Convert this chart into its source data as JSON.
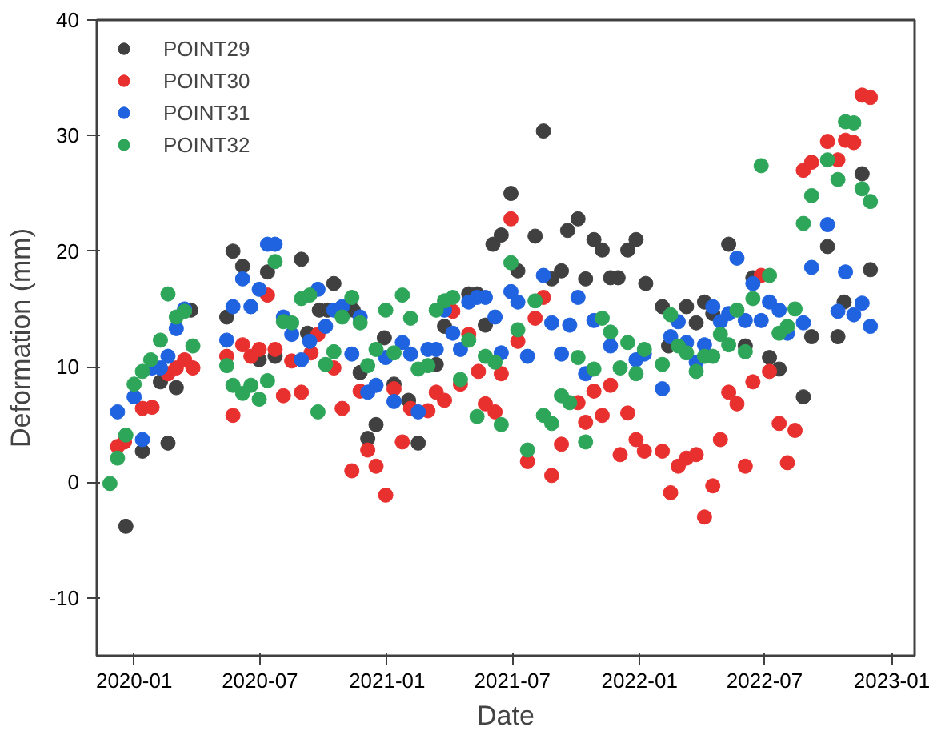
{
  "chart_data": {
    "type": "scatter",
    "xlabel": "Date",
    "ylabel": "Deformation (mm)",
    "xlim": [
      "2019-11-08",
      "2023-02-03"
    ],
    "xticks": [
      "2020-01",
      "2020-07",
      "2021-01",
      "2021-07",
      "2022-01",
      "2022-07",
      "2023-01"
    ],
    "ylim": [
      -15,
      40
    ],
    "yticks": [
      -10,
      0,
      10,
      20,
      30,
      40
    ],
    "grid": false,
    "legend": "top left",
    "marker": "circle",
    "series": [
      {
        "name": "POINT29",
        "color": "#404040",
        "x": [
          "2019-12-20",
          "2020-01-13",
          "2020-02-08",
          "2020-02-19",
          "2020-03-02",
          "2020-03-23",
          "2020-05-14",
          "2020-05-23",
          "2020-06-06",
          "2020-06-30",
          "2020-07-12",
          "2020-07-23",
          "2020-08-30",
          "2020-09-08",
          "2020-09-25",
          "2020-10-07",
          "2020-10-16",
          "2020-11-13",
          "2020-11-23",
          "2020-12-04",
          "2020-12-16",
          "2020-12-28",
          "2021-01-11",
          "2021-02-01",
          "2021-02-15",
          "2021-03-13",
          "2021-03-25",
          "2021-04-29",
          "2021-05-11",
          "2021-05-23",
          "2021-06-03",
          "2021-06-15",
          "2021-06-29",
          "2021-07-09",
          "2021-08-03",
          "2021-08-15",
          "2021-08-27",
          "2021-09-10",
          "2021-09-19",
          "2021-10-04",
          "2021-10-15",
          "2021-10-27",
          "2021-11-08",
          "2021-11-20",
          "2021-12-01",
          "2021-12-15",
          "2021-12-27",
          "2022-01-10",
          "2022-02-03",
          "2022-02-12",
          "2022-03-10",
          "2022-03-24",
          "2022-04-05",
          "2022-04-17",
          "2022-05-10",
          "2022-06-03",
          "2022-06-14",
          "2022-07-08",
          "2022-07-22",
          "2022-08-26",
          "2022-09-07",
          "2022-09-30",
          "2022-10-15",
          "2022-10-24",
          "2022-11-19",
          "2022-12-01"
        ],
        "values": [
          -3.8,
          2.7,
          8.7,
          3.4,
          8.2,
          14.9,
          14.3,
          20.0,
          18.7,
          10.6,
          18.2,
          10.9,
          19.3,
          12.9,
          14.9,
          14.9,
          17.2,
          14.9,
          9.5,
          3.8,
          5.0,
          12.5,
          8.5,
          7.1,
          3.4,
          10.2,
          13.5,
          16.3,
          16.3,
          13.6,
          20.6,
          21.4,
          25.0,
          18.3,
          21.3,
          30.4,
          17.6,
          18.3,
          21.8,
          22.8,
          17.6,
          21.0,
          20.1,
          17.7,
          17.7,
          20.1,
          21.0,
          17.2,
          15.2,
          11.8,
          15.2,
          13.8,
          15.6,
          14.6,
          20.6,
          11.8,
          17.7,
          10.8,
          9.8,
          7.4,
          12.6,
          20.4,
          12.6,
          15.6,
          26.7,
          18.4
        ]
      },
      {
        "name": "POINT30",
        "color": "#e8302f",
        "x": [
          "2019-12-08",
          "2019-12-18",
          "2020-01-13",
          "2020-01-27",
          "2020-02-19",
          "2020-03-02",
          "2020-03-14",
          "2020-03-26",
          "2020-05-14",
          "2020-05-23",
          "2020-06-06",
          "2020-06-18",
          "2020-06-30",
          "2020-07-12",
          "2020-07-23",
          "2020-08-04",
          "2020-08-16",
          "2020-08-30",
          "2020-09-13",
          "2020-09-23",
          "2020-10-16",
          "2020-10-28",
          "2020-11-11",
          "2020-11-23",
          "2020-12-04",
          "2020-12-16",
          "2020-12-30",
          "2021-01-11",
          "2021-01-23",
          "2021-02-04",
          "2021-03-01",
          "2021-03-13",
          "2021-03-25",
          "2021-04-06",
          "2021-04-17",
          "2021-04-29",
          "2021-05-13",
          "2021-05-23",
          "2021-06-06",
          "2021-06-15",
          "2021-06-29",
          "2021-07-09",
          "2021-07-23",
          "2021-08-03",
          "2021-08-15",
          "2021-08-27",
          "2021-09-10",
          "2021-10-04",
          "2021-10-15",
          "2021-10-27",
          "2021-11-08",
          "2021-11-20",
          "2021-12-04",
          "2021-12-15",
          "2021-12-27",
          "2022-01-08",
          "2022-02-03",
          "2022-02-15",
          "2022-02-26",
          "2022-03-10",
          "2022-03-24",
          "2022-04-05",
          "2022-04-17",
          "2022-04-28",
          "2022-05-10",
          "2022-05-22",
          "2022-06-03",
          "2022-06-14",
          "2022-06-26",
          "2022-07-08",
          "2022-07-22",
          "2022-08-03",
          "2022-08-14",
          "2022-08-26",
          "2022-09-07",
          "2022-09-30",
          "2022-10-15",
          "2022-10-26",
          "2022-11-07",
          "2022-11-19",
          "2022-12-01"
        ],
        "values": [
          3.1,
          3.5,
          6.4,
          6.5,
          9.4,
          9.9,
          10.6,
          9.9,
          10.9,
          5.8,
          11.9,
          10.9,
          11.5,
          16.2,
          11.5,
          7.5,
          10.5,
          7.8,
          11.2,
          12.8,
          9.9,
          6.4,
          1.0,
          7.9,
          2.8,
          1.4,
          -1.1,
          8.1,
          3.5,
          6.4,
          6.2,
          7.8,
          7.1,
          14.8,
          8.5,
          12.8,
          9.6,
          6.8,
          6.1,
          9.4,
          22.8,
          12.2,
          1.8,
          14.2,
          16.0,
          0.6,
          3.3,
          6.9,
          5.2,
          7.9,
          5.8,
          8.4,
          2.4,
          6.0,
          3.7,
          2.7,
          2.7,
          -0.9,
          1.4,
          2.1,
          2.4,
          -3.0,
          -0.3,
          3.7,
          7.8,
          6.8,
          1.4,
          8.7,
          17.9,
          9.6,
          5.1,
          1.7,
          4.5,
          27.0,
          27.7,
          29.5,
          27.9,
          29.6,
          29.4,
          33.5,
          33.3
        ]
      },
      {
        "name": "POINT31",
        "color": "#1f63e0",
        "x": [
          "2019-12-08",
          "2020-01-01",
          "2020-01-13",
          "2020-01-27",
          "2020-02-08",
          "2020-02-19",
          "2020-03-02",
          "2020-03-14",
          "2020-05-14",
          "2020-05-23",
          "2020-06-06",
          "2020-06-18",
          "2020-06-30",
          "2020-07-12",
          "2020-07-23",
          "2020-08-04",
          "2020-08-16",
          "2020-08-30",
          "2020-09-11",
          "2020-09-23",
          "2020-10-04",
          "2020-10-16",
          "2020-10-28",
          "2020-11-11",
          "2020-11-23",
          "2020-12-04",
          "2020-12-16",
          "2020-12-30",
          "2021-01-11",
          "2021-01-23",
          "2021-02-04",
          "2021-02-15",
          "2021-03-01",
          "2021-03-13",
          "2021-03-25",
          "2021-04-06",
          "2021-04-17",
          "2021-04-29",
          "2021-05-11",
          "2021-05-23",
          "2021-06-06",
          "2021-06-15",
          "2021-06-29",
          "2021-07-09",
          "2021-07-23",
          "2021-08-15",
          "2021-08-27",
          "2021-09-10",
          "2021-09-22",
          "2021-10-04",
          "2021-10-15",
          "2021-10-27",
          "2021-11-20",
          "2021-12-27",
          "2022-01-08",
          "2022-02-03",
          "2022-02-15",
          "2022-02-26",
          "2022-03-10",
          "2022-03-24",
          "2022-04-05",
          "2022-04-17",
          "2022-04-28",
          "2022-05-10",
          "2022-05-22",
          "2022-06-03",
          "2022-06-14",
          "2022-06-26",
          "2022-07-08",
          "2022-07-22",
          "2022-08-03",
          "2022-08-26",
          "2022-09-07",
          "2022-09-30",
          "2022-10-15",
          "2022-10-26",
          "2022-11-07",
          "2022-11-19",
          "2022-12-01"
        ],
        "values": [
          6.1,
          7.4,
          3.7,
          9.9,
          9.9,
          10.9,
          13.3,
          15.0,
          12.3,
          15.2,
          17.6,
          15.2,
          16.7,
          20.6,
          20.6,
          14.3,
          12.8,
          10.6,
          12.2,
          16.7,
          13.5,
          14.9,
          15.2,
          11.1,
          14.3,
          7.8,
          8.4,
          10.8,
          7.0,
          12.1,
          11.1,
          6.1,
          11.5,
          11.5,
          14.9,
          12.9,
          11.5,
          15.6,
          16.0,
          16.0,
          14.3,
          11.2,
          16.5,
          15.6,
          10.9,
          17.9,
          13.8,
          11.1,
          13.6,
          16.0,
          9.4,
          14.0,
          11.8,
          10.6,
          11.1,
          8.1,
          12.6,
          13.9,
          12.1,
          10.4,
          11.9,
          15.2,
          13.9,
          14.6,
          19.4,
          14.0,
          17.2,
          14.0,
          15.6,
          14.9,
          12.9,
          13.8,
          18.6,
          22.3,
          14.8,
          18.2,
          14.5,
          15.5,
          13.5
        ]
      },
      {
        "name": "POINT32",
        "color": "#2ea65a",
        "x": [
          "2019-11-27",
          "2019-12-08",
          "2019-12-20",
          "2020-01-01",
          "2020-01-13",
          "2020-01-25",
          "2020-02-08",
          "2020-02-19",
          "2020-03-02",
          "2020-03-14",
          "2020-03-26",
          "2020-05-14",
          "2020-05-23",
          "2020-06-06",
          "2020-06-18",
          "2020-06-30",
          "2020-07-12",
          "2020-07-23",
          "2020-08-04",
          "2020-08-16",
          "2020-08-30",
          "2020-09-11",
          "2020-09-23",
          "2020-10-04",
          "2020-10-16",
          "2020-10-28",
          "2020-11-11",
          "2020-11-23",
          "2020-12-04",
          "2020-12-16",
          "2020-12-30",
          "2021-01-11",
          "2021-01-23",
          "2021-02-04",
          "2021-02-15",
          "2021-03-01",
          "2021-03-13",
          "2021-03-25",
          "2021-04-06",
          "2021-04-17",
          "2021-04-29",
          "2021-05-11",
          "2021-05-23",
          "2021-06-06",
          "2021-06-15",
          "2021-06-29",
          "2021-07-09",
          "2021-07-23",
          "2021-08-03",
          "2021-08-15",
          "2021-08-27",
          "2021-09-10",
          "2021-09-22",
          "2021-10-04",
          "2021-10-15",
          "2021-10-27",
          "2021-11-08",
          "2021-11-20",
          "2021-12-04",
          "2021-12-15",
          "2021-12-27",
          "2022-01-08",
          "2022-02-03",
          "2022-02-15",
          "2022-02-26",
          "2022-03-10",
          "2022-03-24",
          "2022-04-05",
          "2022-04-17",
          "2022-04-28",
          "2022-05-10",
          "2022-05-22",
          "2022-06-03",
          "2022-06-14",
          "2022-06-26",
          "2022-07-08",
          "2022-07-22",
          "2022-08-03",
          "2022-08-14",
          "2022-08-26",
          "2022-09-07",
          "2022-09-30",
          "2022-10-15",
          "2022-10-26",
          "2022-11-07",
          "2022-11-19",
          "2022-12-01"
        ],
        "values": [
          -0.1,
          2.1,
          4.1,
          8.5,
          9.6,
          10.6,
          12.3,
          16.3,
          14.3,
          14.8,
          11.8,
          10.1,
          8.4,
          7.7,
          8.4,
          7.2,
          8.8,
          19.1,
          13.9,
          13.8,
          15.9,
          16.2,
          6.1,
          10.2,
          11.3,
          14.3,
          16.0,
          13.8,
          10.1,
          11.5,
          14.9,
          11.2,
          16.2,
          14.2,
          9.8,
          10.1,
          14.9,
          15.7,
          16.0,
          8.9,
          12.3,
          5.7,
          10.9,
          10.4,
          5.0,
          19.0,
          13.2,
          2.8,
          15.7,
          5.8,
          5.1,
          7.5,
          6.9,
          10.8,
          3.5,
          9.8,
          14.2,
          13.0,
          9.9,
          12.1,
          9.4,
          11.5,
          10.2,
          14.5,
          11.8,
          11.2,
          9.6,
          10.9,
          10.9,
          12.8,
          11.9,
          14.9,
          11.3,
          15.9,
          27.4,
          17.9,
          12.9,
          13.5,
          15.0,
          22.4,
          24.8,
          27.9,
          26.2,
          31.2,
          31.1,
          25.4,
          24.3
        ]
      }
    ]
  }
}
